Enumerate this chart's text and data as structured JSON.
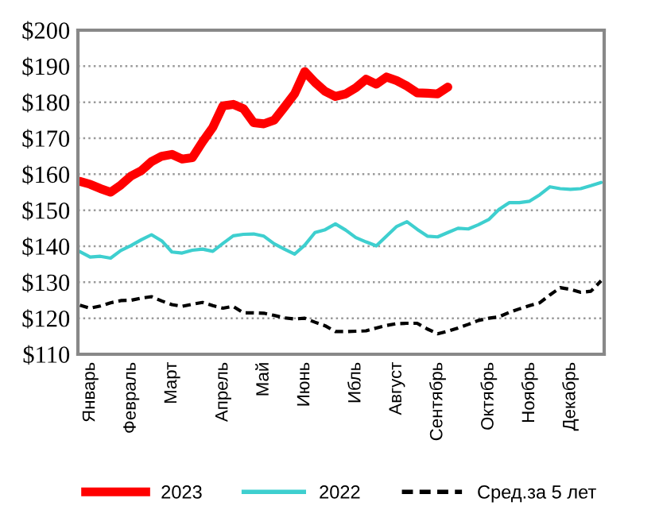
{
  "chart_data": {
    "type": "line",
    "ylim": [
      110,
      200
    ],
    "yticks": [
      {
        "value": 110,
        "label": "$110"
      },
      {
        "value": 120,
        "label": "$120"
      },
      {
        "value": 130,
        "label": "$130"
      },
      {
        "value": 140,
        "label": "$140"
      },
      {
        "value": 150,
        "label": "$150"
      },
      {
        "value": 160,
        "label": "$160"
      },
      {
        "value": 170,
        "label": "$170"
      },
      {
        "value": 180,
        "label": "$180"
      },
      {
        "value": 190,
        "label": "$190"
      },
      {
        "value": 200,
        "label": "$200"
      }
    ],
    "categories": [
      null,
      "Январь",
      null,
      null,
      null,
      "Февраль",
      null,
      null,
      null,
      "Март",
      null,
      null,
      null,
      null,
      "Апрель",
      null,
      null,
      null,
      "Май",
      null,
      null,
      null,
      "Июнь",
      null,
      null,
      null,
      null,
      "Ибль",
      null,
      null,
      null,
      "Август",
      null,
      null,
      null,
      "Сентябрь",
      null,
      null,
      null,
      null,
      "Октябрь",
      null,
      null,
      null,
      "Ноябрь",
      null,
      null,
      null,
      "Декабрь",
      null,
      null,
      null
    ],
    "grid": "y",
    "legend": "bottom",
    "marker": "none",
    "series": [
      {
        "name": "2023",
        "color": "#ff0000",
        "line_style": "solid",
        "values": [
          158,
          157.2,
          156,
          155,
          157,
          159.5,
          161,
          163.5,
          165,
          165.5,
          164.2,
          164.6,
          169,
          173,
          179,
          179.4,
          178.2,
          174.3,
          174,
          175,
          178.6,
          182.3,
          188.5,
          185.5,
          183,
          181.6,
          182.3,
          184,
          186.4,
          185,
          187,
          186,
          184.5,
          182.6,
          182.5,
          182.3,
          184.2,
          null,
          null,
          null,
          null,
          null,
          null,
          null,
          null,
          null,
          null,
          null,
          null,
          null,
          null,
          null
        ]
      },
      {
        "name": "2022",
        "color": "#3ecfcf",
        "line_style": "solid",
        "values": [
          138.5,
          137,
          137.2,
          136.7,
          138.8,
          140.2,
          141.8,
          143.2,
          141.5,
          138.4,
          138.1,
          138.9,
          139.2,
          138.6,
          140.8,
          142.9,
          143.3,
          143.4,
          142.8,
          140.7,
          139.2,
          137.8,
          140.3,
          143.8,
          144.6,
          146.2,
          144.5,
          142.4,
          141.2,
          140.1,
          142.8,
          145.5,
          146.8,
          144.7,
          142.8,
          142.6,
          143.8,
          145,
          144.8,
          146,
          147.4,
          150.2,
          152.1,
          152.1,
          152.5,
          154.3,
          156.5,
          156,
          155.8,
          156,
          156.8,
          157.7
        ]
      },
      {
        "name": "Сред.за 5 лет",
        "color": "#000000",
        "line_style": "dashed",
        "values": [
          123.6,
          122.8,
          123.4,
          124.3,
          124.9,
          125,
          125.6,
          126,
          124.8,
          123.8,
          123.3,
          123.9,
          124.4,
          123.5,
          122.8,
          123.3,
          121.5,
          121.5,
          121.4,
          120.8,
          120.1,
          119.8,
          120,
          118.9,
          117.9,
          116.3,
          116.3,
          116.4,
          116.5,
          117.3,
          118,
          118.5,
          118.6,
          118.6,
          117,
          115.7,
          116.4,
          117.3,
          118.3,
          119.4,
          120,
          120.4,
          121.6,
          122.6,
          123.5,
          124.3,
          126.5,
          128.5,
          128,
          127.2,
          127.5,
          130.4
        ]
      }
    ]
  }
}
